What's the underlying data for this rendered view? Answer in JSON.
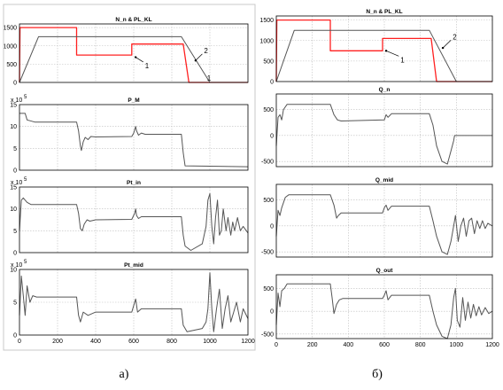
{
  "panel_a": {
    "caption": "а)"
  },
  "panel_b": {
    "caption": "б)"
  },
  "colors": {
    "red": "#ff2020",
    "dark": "#555555",
    "grid": "#bdbdbd",
    "frame": "#000000"
  },
  "chart_data": [
    {
      "type": "line",
      "panel": "a",
      "title": "N_n & PL_KL",
      "xlim": [
        0,
        1200
      ],
      "ylim": [
        0,
        1600
      ],
      "xticks": [],
      "yticks": [
        0,
        500,
        1000,
        1500
      ],
      "yexp": "",
      "annotations": [
        {
          "text": "1",
          "x": 610,
          "y": 690,
          "tx": 650,
          "ty": 560
        },
        {
          "text": "2",
          "x": 925,
          "y": 600,
          "tx": 960,
          "ty": 780
        },
        {
          "text": "1",
          "x": 985,
          "y": 50,
          "tx": null,
          "ty": null
        }
      ],
      "series": [
        {
          "color": "red",
          "points": [
            [
              0,
              0
            ],
            [
              3,
              1500
            ],
            [
              300,
              1500
            ],
            [
              300,
              750
            ],
            [
              590,
              750
            ],
            [
              590,
              1050
            ],
            [
              860,
              1050
            ],
            [
              890,
              0
            ],
            [
              1200,
              0
            ]
          ]
        },
        {
          "color": "dark",
          "points": [
            [
              0,
              0
            ],
            [
              100,
              1250
            ],
            [
              850,
              1250
            ],
            [
              1000,
              0
            ],
            [
              1200,
              0
            ]
          ]
        }
      ]
    },
    {
      "type": "line",
      "panel": "a",
      "title": "P_M",
      "xlim": [
        0,
        1200
      ],
      "ylim": [
        0,
        15
      ],
      "xticks": [],
      "yticks": [
        0,
        5,
        10,
        15
      ],
      "yexp": "5",
      "annotations": [],
      "series": [
        {
          "color": "dark",
          "points": [
            [
              0,
              13
            ],
            [
              30,
              13
            ],
            [
              40,
              11.5
            ],
            [
              80,
              11
            ],
            [
              300,
              11
            ],
            [
              310,
              9
            ],
            [
              320,
              5.5
            ],
            [
              325,
              4.5
            ],
            [
              335,
              6.5
            ],
            [
              345,
              7.5
            ],
            [
              360,
              7
            ],
            [
              375,
              7.7
            ],
            [
              400,
              7.6
            ],
            [
              590,
              7.7
            ],
            [
              600,
              8.5
            ],
            [
              610,
              10
            ],
            [
              615,
              9
            ],
            [
              625,
              8
            ],
            [
              640,
              8.5
            ],
            [
              660,
              8.2
            ],
            [
              850,
              8.2
            ],
            [
              860,
              4
            ],
            [
              870,
              1
            ],
            [
              1200,
              0.8
            ]
          ]
        }
      ]
    },
    {
      "type": "line",
      "panel": "a",
      "title": "Pt_in",
      "xlim": [
        0,
        1200
      ],
      "ylim": [
        0,
        15
      ],
      "xticks": [],
      "yticks": [
        0,
        5,
        10,
        15
      ],
      "yexp": "5",
      "annotations": [],
      "series": [
        {
          "color": "dark",
          "points": [
            [
              0,
              5
            ],
            [
              10,
              12
            ],
            [
              20,
              12.5
            ],
            [
              30,
              12
            ],
            [
              40,
              11.5
            ],
            [
              60,
              11
            ],
            [
              300,
              11
            ],
            [
              310,
              9
            ],
            [
              320,
              5.5
            ],
            [
              330,
              5
            ],
            [
              340,
              6.5
            ],
            [
              355,
              7.5
            ],
            [
              370,
              7.2
            ],
            [
              400,
              7.5
            ],
            [
              590,
              7.6
            ],
            [
              605,
              9
            ],
            [
              610,
              10
            ],
            [
              615,
              8.5
            ],
            [
              625,
              7.8
            ],
            [
              640,
              8.2
            ],
            [
              850,
              8.2
            ],
            [
              860,
              4
            ],
            [
              870,
              1.5
            ],
            [
              900,
              0.5
            ],
            [
              960,
              2
            ],
            [
              980,
              6
            ],
            [
              990,
              12
            ],
            [
              1000,
              13.5
            ],
            [
              1010,
              6
            ],
            [
              1020,
              2
            ],
            [
              1030,
              8
            ],
            [
              1040,
              12
            ],
            [
              1050,
              4
            ],
            [
              1060,
              5
            ],
            [
              1070,
              10
            ],
            [
              1085,
              5
            ],
            [
              1095,
              8
            ],
            [
              1110,
              4
            ],
            [
              1120,
              7
            ],
            [
              1130,
              5
            ],
            [
              1145,
              8
            ],
            [
              1160,
              5
            ],
            [
              1175,
              6
            ],
            [
              1200,
              4.5
            ]
          ]
        }
      ]
    },
    {
      "type": "line",
      "panel": "a",
      "title": "Pt_mid",
      "xlim": [
        0,
        1200
      ],
      "ylim": [
        0,
        10
      ],
      "xticks": [
        0,
        200,
        400,
        600,
        800,
        1000,
        1200
      ],
      "yticks": [
        0,
        5,
        10
      ],
      "yexp": "5",
      "annotations": [],
      "series": [
        {
          "color": "dark",
          "points": [
            [
              0,
              3
            ],
            [
              10,
              9
            ],
            [
              20,
              6
            ],
            [
              30,
              3
            ],
            [
              40,
              7.5
            ],
            [
              55,
              5
            ],
            [
              70,
              6
            ],
            [
              90,
              5.8
            ],
            [
              300,
              5.8
            ],
            [
              310,
              3
            ],
            [
              320,
              2
            ],
            [
              335,
              3.5
            ],
            [
              360,
              3
            ],
            [
              400,
              3.5
            ],
            [
              590,
              3.5
            ],
            [
              600,
              4.5
            ],
            [
              610,
              5.5
            ],
            [
              620,
              3.5
            ],
            [
              640,
              4
            ],
            [
              850,
              4
            ],
            [
              860,
              1.5
            ],
            [
              880,
              0.5
            ],
            [
              960,
              1
            ],
            [
              980,
              2
            ],
            [
              990,
              4
            ],
            [
              1000,
              9.5
            ],
            [
              1010,
              4
            ],
            [
              1020,
              0.5
            ],
            [
              1035,
              4
            ],
            [
              1050,
              7
            ],
            [
              1065,
              1
            ],
            [
              1080,
              4
            ],
            [
              1095,
              6
            ],
            [
              1110,
              2
            ],
            [
              1125,
              3.5
            ],
            [
              1140,
              5
            ],
            [
              1160,
              2
            ],
            [
              1175,
              4
            ],
            [
              1200,
              2.5
            ]
          ]
        }
      ]
    },
    {
      "type": "line",
      "panel": "b",
      "title": "N_n & PL_KL",
      "xlim": [
        0,
        1200
      ],
      "ylim": [
        0,
        1600
      ],
      "xticks": [],
      "yticks": [
        0,
        500,
        1000,
        1500
      ],
      "yexp": "",
      "annotations": [
        {
          "text": "1",
          "x": 610,
          "y": 750,
          "tx": 680,
          "ty": 620
        },
        {
          "text": "2",
          "x": 925,
          "y": 820,
          "tx": 970,
          "ty": 1010
        }
      ],
      "series": [
        {
          "color": "red",
          "points": [
            [
              0,
              0
            ],
            [
              3,
              1500
            ],
            [
              300,
              1500
            ],
            [
              300,
              750
            ],
            [
              590,
              750
            ],
            [
              590,
              1050
            ],
            [
              860,
              1050
            ],
            [
              890,
              0
            ],
            [
              1200,
              0
            ]
          ]
        },
        {
          "color": "dark",
          "points": [
            [
              0,
              0
            ],
            [
              100,
              1250
            ],
            [
              850,
              1250
            ],
            [
              1000,
              0
            ],
            [
              1200,
              0
            ]
          ]
        }
      ]
    },
    {
      "type": "line",
      "panel": "b",
      "title": "Q_n",
      "xlim": [
        0,
        1200
      ],
      "ylim": [
        -600,
        800
      ],
      "xticks": [],
      "yticks": [
        -500,
        0,
        500
      ],
      "yexp": "",
      "annotations": [],
      "series": [
        {
          "color": "dark",
          "points": [
            [
              0,
              -200
            ],
            [
              10,
              350
            ],
            [
              20,
              400
            ],
            [
              30,
              300
            ],
            [
              40,
              500
            ],
            [
              60,
              600
            ],
            [
              300,
              600
            ],
            [
              320,
              400
            ],
            [
              340,
              300
            ],
            [
              360,
              280
            ],
            [
              600,
              300
            ],
            [
              610,
              400
            ],
            [
              620,
              350
            ],
            [
              640,
              420
            ],
            [
              850,
              420
            ],
            [
              870,
              200
            ],
            [
              890,
              -200
            ],
            [
              920,
              -500
            ],
            [
              950,
              -550
            ],
            [
              970,
              -300
            ],
            [
              985,
              -100
            ],
            [
              990,
              0
            ],
            [
              1200,
              0
            ]
          ]
        }
      ]
    },
    {
      "type": "line",
      "panel": "b",
      "title": "Q_mid",
      "xlim": [
        0,
        1200
      ],
      "ylim": [
        -600,
        800
      ],
      "xticks": [],
      "yticks": [
        -500,
        0,
        500
      ],
      "yexp": "",
      "annotations": [],
      "series": [
        {
          "color": "dark",
          "points": [
            [
              0,
              -200
            ],
            [
              10,
              300
            ],
            [
              20,
              200
            ],
            [
              30,
              350
            ],
            [
              50,
              550
            ],
            [
              70,
              600
            ],
            [
              300,
              600
            ],
            [
              320,
              400
            ],
            [
              335,
              150
            ],
            [
              345,
              200
            ],
            [
              360,
              250
            ],
            [
              590,
              250
            ],
            [
              600,
              350
            ],
            [
              610,
              400
            ],
            [
              620,
              300
            ],
            [
              640,
              380
            ],
            [
              850,
              380
            ],
            [
              870,
              100
            ],
            [
              890,
              -200
            ],
            [
              920,
              -500
            ],
            [
              950,
              -550
            ],
            [
              970,
              -300
            ],
            [
              985,
              0
            ],
            [
              995,
              200
            ],
            [
              1010,
              -300
            ],
            [
              1025,
              0
            ],
            [
              1040,
              150
            ],
            [
              1055,
              -200
            ],
            [
              1070,
              100
            ],
            [
              1085,
              150
            ],
            [
              1100,
              -150
            ],
            [
              1115,
              100
            ],
            [
              1130,
              -50
            ],
            [
              1145,
              100
            ],
            [
              1160,
              -50
            ],
            [
              1175,
              50
            ],
            [
              1200,
              0
            ]
          ]
        }
      ]
    },
    {
      "type": "line",
      "panel": "b",
      "title": "Q_out",
      "xlim": [
        0,
        1200
      ],
      "ylim": [
        -600,
        800
      ],
      "xticks": [
        0,
        200,
        400,
        600,
        800,
        1000,
        1200
      ],
      "yticks": [
        -500,
        0,
        500
      ],
      "yexp": "",
      "annotations": [],
      "series": [
        {
          "color": "dark",
          "points": [
            [
              0,
              -300
            ],
            [
              10,
              400
            ],
            [
              20,
              100
            ],
            [
              30,
              450
            ],
            [
              45,
              500
            ],
            [
              60,
              600
            ],
            [
              300,
              600
            ],
            [
              310,
              300
            ],
            [
              320,
              -50
            ],
            [
              335,
              150
            ],
            [
              350,
              250
            ],
            [
              370,
              280
            ],
            [
              590,
              280
            ],
            [
              600,
              350
            ],
            [
              610,
              450
            ],
            [
              620,
              250
            ],
            [
              640,
              350
            ],
            [
              850,
              350
            ],
            [
              870,
              0
            ],
            [
              890,
              -300
            ],
            [
              920,
              -550
            ],
            [
              950,
              -600
            ],
            [
              970,
              -300
            ],
            [
              985,
              300
            ],
            [
              995,
              500
            ],
            [
              1005,
              -200
            ],
            [
              1020,
              -350
            ],
            [
              1035,
              300
            ],
            [
              1050,
              -200
            ],
            [
              1065,
              200
            ],
            [
              1080,
              -150
            ],
            [
              1095,
              150
            ],
            [
              1110,
              -100
            ],
            [
              1125,
              100
            ],
            [
              1140,
              -80
            ],
            [
              1160,
              80
            ],
            [
              1180,
              -50
            ],
            [
              1200,
              0
            ]
          ]
        }
      ]
    }
  ]
}
